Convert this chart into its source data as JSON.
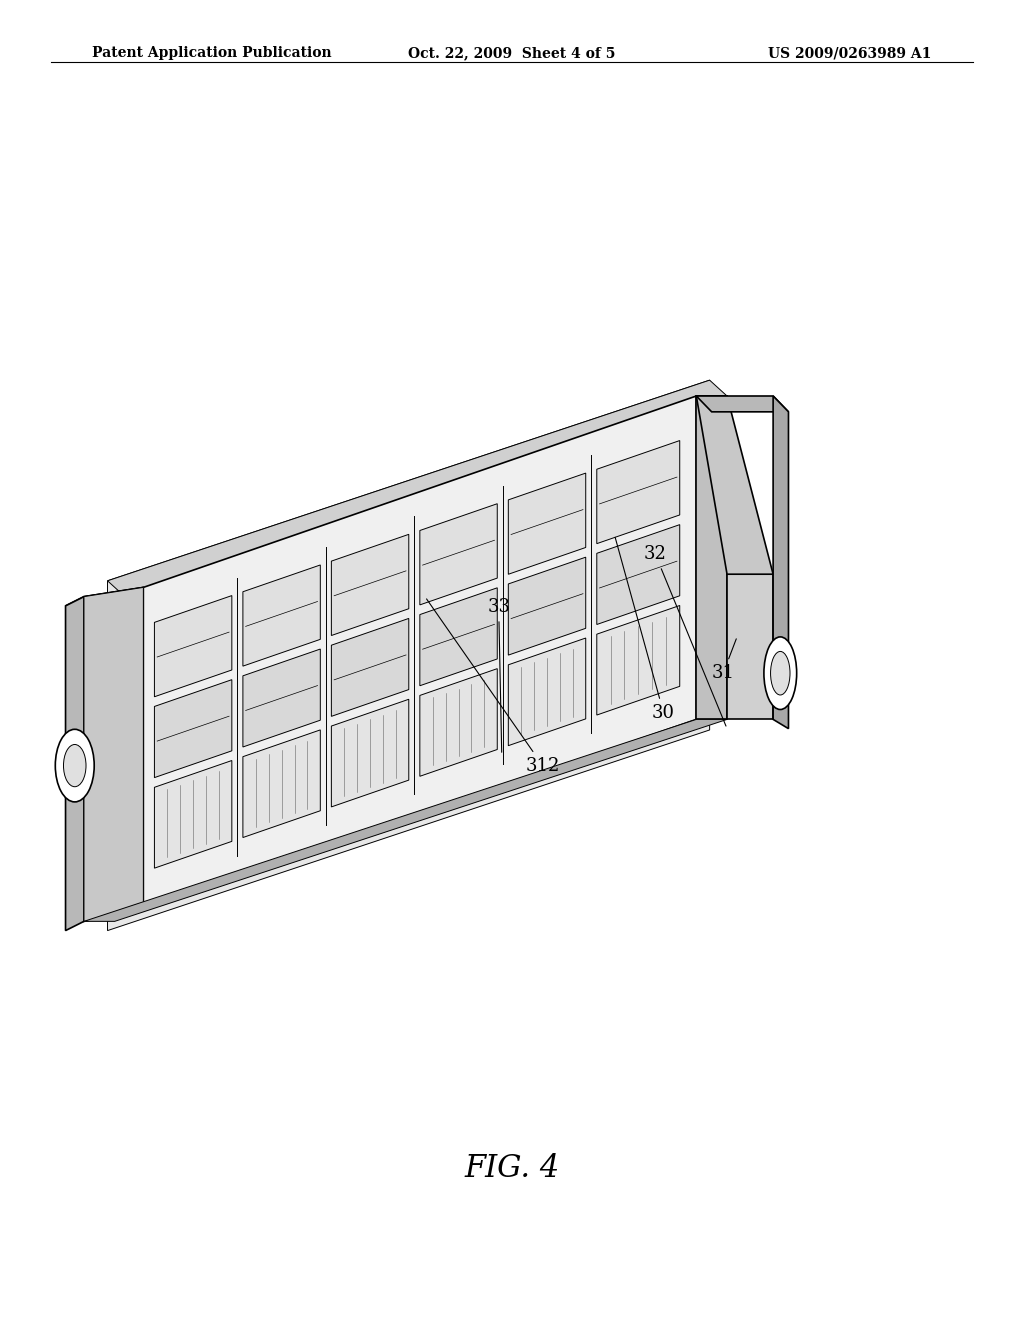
{
  "title_left": "Patent Application Publication",
  "title_center": "Oct. 22, 2009  Sheet 4 of 5",
  "title_right": "US 2009/0263989 A1",
  "fig_label": "FIG. 4",
  "background_color": "#ffffff",
  "line_color": "#000000",
  "header_fontsize": 10,
  "label_fontsize": 13,
  "fig_label_fontsize": 22
}
